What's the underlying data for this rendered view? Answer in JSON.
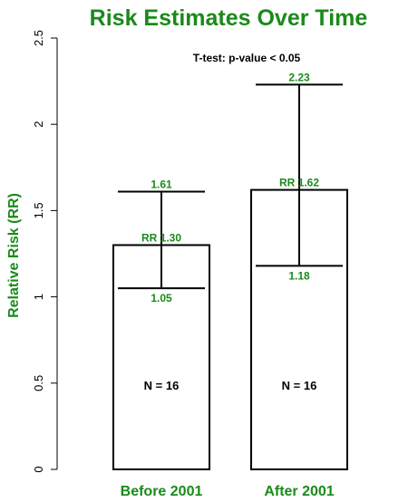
{
  "chart_data": {
    "type": "bar",
    "title": "Risk Estimates Over Time",
    "ylabel": "Relative Risk (RR)",
    "ylim": [
      0,
      2.5
    ],
    "yticks": [
      "0",
      "0.5",
      "1",
      "1.5",
      "2",
      "2.5"
    ],
    "annotation": "T-test: p-value < 0.05",
    "categories": [
      "Before 2001",
      "After 2001"
    ],
    "values": [
      1.3,
      1.62
    ],
    "value_labels": [
      "RR 1.30",
      "RR 1.62"
    ],
    "lower": [
      1.05,
      1.18
    ],
    "lower_labels": [
      "1.05",
      "1.18"
    ],
    "upper": [
      1.61,
      2.23
    ],
    "upper_labels": [
      "1.61",
      "2.23"
    ],
    "n_labels": [
      "N = 16",
      "N = 16"
    ],
    "grid": false,
    "colors": {
      "text_accent": "#1a8a1a",
      "bar_fill": "#ffffff",
      "stroke": "#000000"
    }
  }
}
